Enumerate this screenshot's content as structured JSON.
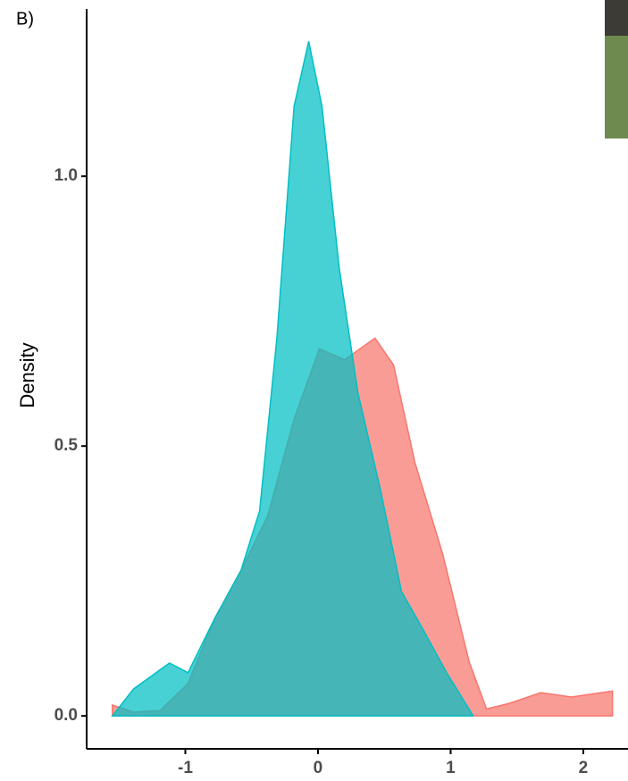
{
  "chart_data": {
    "type": "area",
    "panel_label": "B)",
    "ylabel": "Density",
    "xlim": [
      -1.744,
      2.337
    ],
    "ylim": [
      -0.061,
      1.31
    ],
    "xticks": [
      -1,
      0,
      1,
      2
    ],
    "yticks": [
      {
        "value": 0,
        "label": "0.0"
      },
      {
        "value": 0.5,
        "label": "0.5"
      },
      {
        "value": 1,
        "label": "1.0"
      }
    ],
    "series": [
      {
        "color": "#F8766D",
        "x": [
          -1.55,
          -1.39,
          -1.19,
          -0.98,
          -0.78,
          -0.58,
          -0.38,
          -0.18,
          0.01,
          0.2,
          0.43,
          0.57,
          0.73,
          0.94,
          1.14,
          1.27,
          1.44,
          1.68,
          1.91,
          2.22
        ],
        "values": [
          0.02,
          0.007,
          0.01,
          0.06,
          0.18,
          0.27,
          0.37,
          0.55,
          0.68,
          0.66,
          0.7,
          0.65,
          0.47,
          0.3,
          0.1,
          0.013,
          0.023,
          0.043,
          0.035,
          0.046
        ]
      },
      {
        "color": "#00BFC4",
        "x": [
          -1.55,
          -1.39,
          -1.12,
          -0.98,
          -0.78,
          -0.58,
          -0.44,
          -0.31,
          -0.18,
          -0.07,
          0.03,
          0.16,
          0.3,
          0.47,
          0.63,
          0.77,
          0.97,
          1.17
        ],
        "values": [
          0,
          0.05,
          0.098,
          0.08,
          0.18,
          0.27,
          0.38,
          0.7,
          1.13,
          1.25,
          1.13,
          0.83,
          0.6,
          0.42,
          0.23,
          0.17,
          0.08,
          0
        ]
      }
    ]
  }
}
